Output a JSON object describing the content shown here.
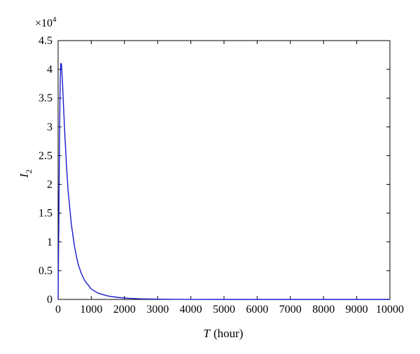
{
  "chart_data": {
    "type": "line",
    "title": "",
    "xlabel": {
      "symbol": "T",
      "unit": "(hour)"
    },
    "ylabel": {
      "symbol": "I",
      "subscript": "2"
    },
    "y_multiplier": {
      "prefix": "×10",
      "exponent": "4"
    },
    "xlim": [
      0,
      10000
    ],
    "ylim": [
      0,
      4.5
    ],
    "x_ticks": [
      0,
      1000,
      2000,
      3000,
      4000,
      5000,
      6000,
      7000,
      8000,
      9000,
      10000
    ],
    "x_tick_labels": [
      "0",
      "1000",
      "2000",
      "3000",
      "4000",
      "5000",
      "6000",
      "7000",
      "8000",
      "9000",
      "10000"
    ],
    "y_ticks": [
      0,
      0.5,
      1,
      1.5,
      2,
      2.5,
      3,
      3.5,
      4,
      4.5
    ],
    "y_tick_labels": [
      "0",
      "0.5",
      "1",
      "1.5",
      "2",
      "2.5",
      "3",
      "3.5",
      "4",
      "4.5"
    ],
    "grid": false,
    "legend": "none",
    "series": [
      {
        "color": "#1a1acc",
        "x": [
          0,
          20,
          40,
          60,
          80,
          100,
          130,
          160,
          200,
          250,
          300,
          400,
          500,
          600,
          700,
          800,
          1000,
          1200,
          1500,
          1800,
          2100,
          2500,
          3000,
          3500,
          4000,
          5000,
          6000,
          7000,
          8000,
          9000,
          10000
        ],
        "y": [
          0,
          1.2,
          2.6,
          3.7,
          4.1,
          4.1,
          3.8,
          3.4,
          2.9,
          2.35,
          1.9,
          1.3,
          0.9,
          0.62,
          0.45,
          0.33,
          0.18,
          0.11,
          0.06,
          0.035,
          0.02,
          0.01,
          0.005,
          0.002,
          0.001,
          0,
          0,
          0,
          0,
          0,
          0
        ]
      }
    ]
  }
}
